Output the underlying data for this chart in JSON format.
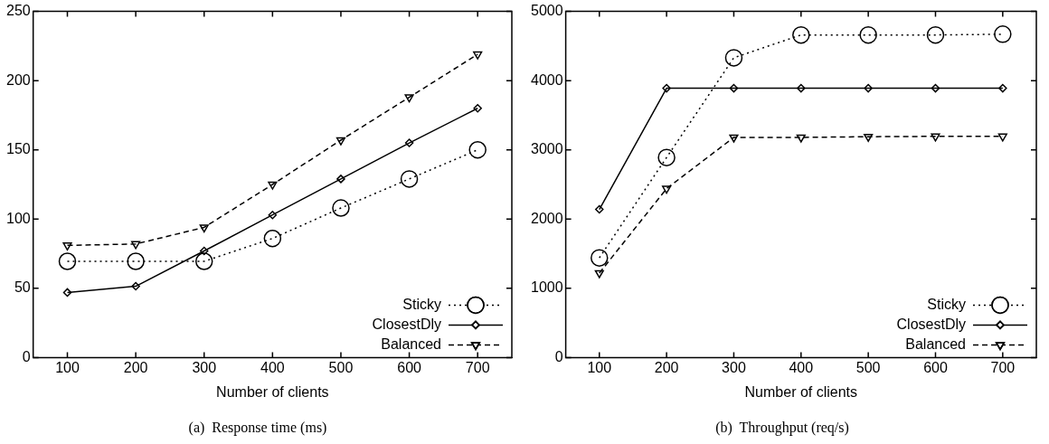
{
  "chart_data": [
    {
      "type": "line",
      "title": "(a)  Response time (ms)",
      "xlabel": "Number of clients",
      "x": [
        100,
        200,
        300,
        400,
        500,
        600,
        700
      ],
      "xlim": [
        50,
        750
      ],
      "xticks": [
        100,
        200,
        300,
        400,
        500,
        600,
        700
      ],
      "ylim": [
        0,
        250
      ],
      "yticks": [
        0,
        50,
        100,
        150,
        200,
        250
      ],
      "legend": "bottom right",
      "series": [
        {
          "name": "Sticky",
          "color": "#000000",
          "marker": "circle",
          "line_style": "dotted",
          "values": [
            69.5,
            69.5,
            69.5,
            86,
            108,
            129,
            150
          ]
        },
        {
          "name": "ClosestDly",
          "color": "#000000",
          "marker": "diamond",
          "line_style": "solid",
          "values": [
            47,
            51.5,
            77,
            103,
            129,
            155,
            180
          ]
        },
        {
          "name": "Balanced",
          "color": "#000000",
          "marker": "triangle",
          "line_style": "dashed",
          "values": [
            81,
            82,
            94,
            125,
            157,
            188,
            219
          ]
        }
      ]
    },
    {
      "type": "line",
      "title": "(b)  Throughput (req/s)",
      "xlabel": "Number of clients",
      "x": [
        100,
        200,
        300,
        400,
        500,
        600,
        700
      ],
      "xlim": [
        50,
        750
      ],
      "xticks": [
        100,
        200,
        300,
        400,
        500,
        600,
        700
      ],
      "ylim": [
        0,
        5000
      ],
      "yticks": [
        0,
        1000,
        2000,
        3000,
        4000,
        5000
      ],
      "legend": "bottom right",
      "series": [
        {
          "name": "Sticky",
          "color": "#000000",
          "marker": "circle",
          "line_style": "dotted",
          "values": [
            1440,
            2890,
            4330,
            4660,
            4660,
            4660,
            4670
          ]
        },
        {
          "name": "ClosestDly",
          "color": "#000000",
          "marker": "diamond",
          "line_style": "solid",
          "values": [
            2140,
            3890,
            3890,
            3890,
            3890,
            3890,
            3890
          ]
        },
        {
          "name": "Balanced",
          "color": "#000000",
          "marker": "triangle",
          "line_style": "dashed",
          "values": [
            1220,
            2440,
            3180,
            3180,
            3190,
            3195,
            3195
          ]
        }
      ]
    }
  ]
}
